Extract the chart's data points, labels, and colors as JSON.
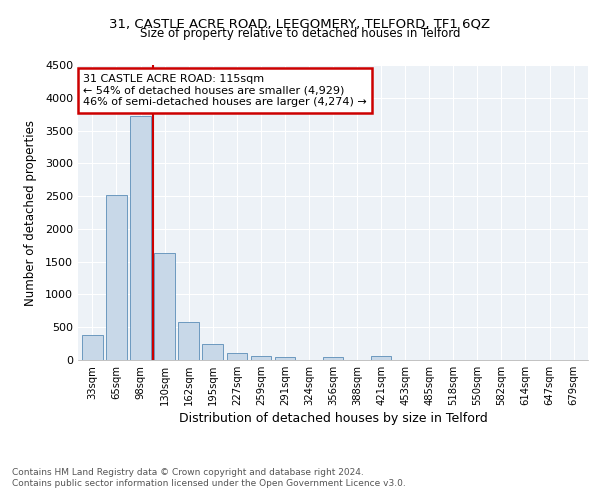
{
  "title1": "31, CASTLE ACRE ROAD, LEEGOMERY, TELFORD, TF1 6QZ",
  "title2": "Size of property relative to detached houses in Telford",
  "xlabel": "Distribution of detached houses by size in Telford",
  "ylabel": "Number of detached properties",
  "footer1": "Contains HM Land Registry data © Crown copyright and database right 2024.",
  "footer2": "Contains public sector information licensed under the Open Government Licence v3.0.",
  "annotation_line1": "31 CASTLE ACRE ROAD: 115sqm",
  "annotation_line2": "← 54% of detached houses are smaller (4,929)",
  "annotation_line3": "46% of semi-detached houses are larger (4,274) →",
  "bar_color": "#c8d8e8",
  "bar_edge_color": "#5b8db8",
  "vline_color": "#cc0000",
  "categories": [
    "33sqm",
    "65sqm",
    "98sqm",
    "130sqm",
    "162sqm",
    "195sqm",
    "227sqm",
    "259sqm",
    "291sqm",
    "324sqm",
    "356sqm",
    "388sqm",
    "421sqm",
    "453sqm",
    "485sqm",
    "518sqm",
    "550sqm",
    "582sqm",
    "614sqm",
    "647sqm",
    "679sqm"
  ],
  "values": [
    380,
    2510,
    3720,
    1630,
    580,
    240,
    110,
    60,
    40,
    0,
    50,
    0,
    60,
    0,
    0,
    0,
    0,
    0,
    0,
    0,
    0
  ],
  "ylim": [
    0,
    4500
  ],
  "yticks": [
    0,
    500,
    1000,
    1500,
    2000,
    2500,
    3000,
    3500,
    4000,
    4500
  ],
  "bg_color": "#edf2f7",
  "grid_color": "#ffffff",
  "box_color": "#cc0000"
}
